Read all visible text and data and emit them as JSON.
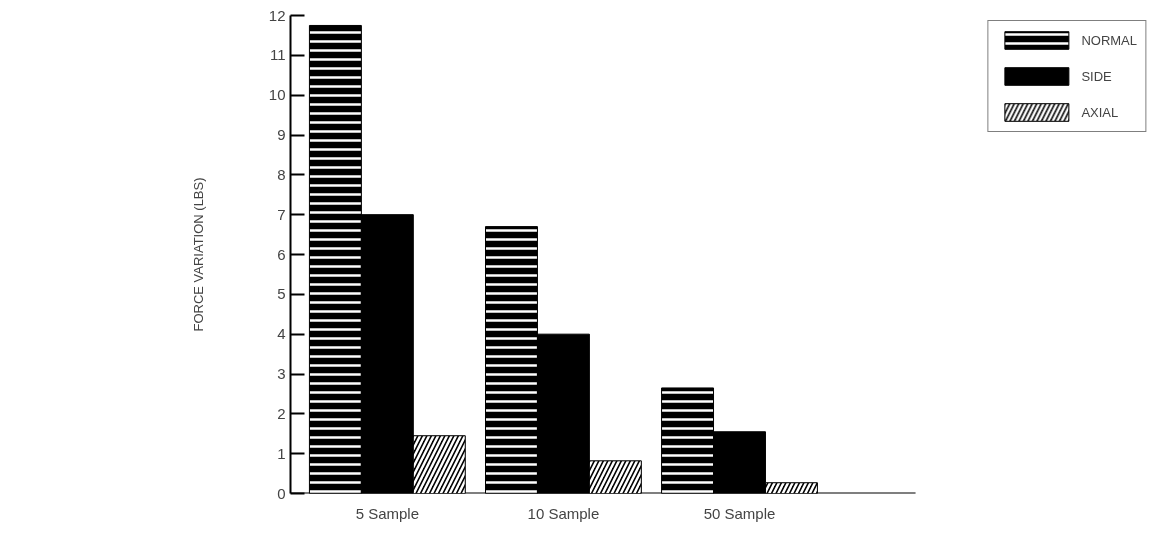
{
  "chart_data": {
    "type": "bar",
    "ylabel": "FORCE VARIATION (LBS)",
    "categories": [
      "5 Sample",
      "10 Sample",
      "50 Sample"
    ],
    "series": [
      {
        "name": "NORMAL",
        "color": "#000000",
        "values": [
          11.75,
          6.7,
          2.65
        ]
      },
      {
        "name": "SIDE",
        "color": "#000000",
        "values": [
          7.0,
          4.0,
          1.55
        ]
      },
      {
        "name": "AXIAL",
        "color": "#000000",
        "values": [
          1.45,
          0.82,
          0.27
        ]
      }
    ],
    "ylim": [
      0,
      12
    ],
    "yticks": [
      0,
      1,
      2,
      3,
      4,
      5,
      6,
      7,
      8,
      9,
      10,
      11,
      12
    ],
    "grid": false,
    "legend": "top right"
  }
}
